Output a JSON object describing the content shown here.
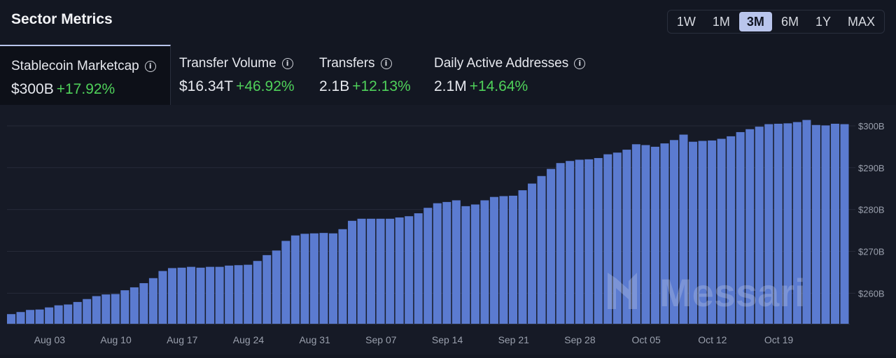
{
  "header": {
    "title": "Sector Metrics"
  },
  "ranges": [
    {
      "label": "1W",
      "active": false
    },
    {
      "label": "1M",
      "active": false
    },
    {
      "label": "3M",
      "active": true
    },
    {
      "label": "6M",
      "active": false
    },
    {
      "label": "1Y",
      "active": false
    },
    {
      "label": "MAX",
      "active": false
    }
  ],
  "metrics": [
    {
      "label": "Stablecoin Marketcap",
      "value": "$300B",
      "change": "+17.92%",
      "active": true
    },
    {
      "label": "Transfer Volume",
      "value": "$16.34T",
      "change": "+46.92%",
      "active": false
    },
    {
      "label": "Transfers",
      "value": "2.1B",
      "change": "+12.13%",
      "active": false
    },
    {
      "label": "Daily Active Addresses",
      "value": "2.1M",
      "change": "+14.64%",
      "active": false
    }
  ],
  "watermark": "Messari",
  "colors": {
    "bar": "#5b7bd0",
    "positive": "#4fd15a",
    "accent": "#b9c5ec"
  },
  "chart_data": {
    "type": "bar",
    "ylim": [
      252.7,
      302
    ],
    "yticks": [
      {
        "value": 300,
        "label": "$300B"
      },
      {
        "value": 290,
        "label": "$290B"
      },
      {
        "value": 280,
        "label": "$280B"
      },
      {
        "value": 270,
        "label": "$270B"
      },
      {
        "value": 260,
        "label": "$260B"
      }
    ],
    "xticks": [
      {
        "index": 4,
        "label": "Aug 03"
      },
      {
        "index": 11,
        "label": "Aug 10"
      },
      {
        "index": 18,
        "label": "Aug 17"
      },
      {
        "index": 25,
        "label": "Aug 24"
      },
      {
        "index": 32,
        "label": "Aug 31"
      },
      {
        "index": 39,
        "label": "Sep 07"
      },
      {
        "index": 46,
        "label": "Sep 14"
      },
      {
        "index": 53,
        "label": "Sep 21"
      },
      {
        "index": 60,
        "label": "Sep 28"
      },
      {
        "index": 67,
        "label": "Oct 05"
      },
      {
        "index": 74,
        "label": "Oct 12"
      },
      {
        "index": 81,
        "label": "Oct 19"
      }
    ],
    "series": [
      {
        "values": [
          255.0,
          255.5,
          256.0,
          256.1,
          256.6,
          257.1,
          257.3,
          257.9,
          258.6,
          259.3,
          259.7,
          259.8,
          260.7,
          261.4,
          262.4,
          263.6,
          265.3,
          266.0,
          266.1,
          266.3,
          266.1,
          266.3,
          266.3,
          266.6,
          266.7,
          266.8,
          267.7,
          269.1,
          270.2,
          272.5,
          273.8,
          274.2,
          274.3,
          274.4,
          274.3,
          275.3,
          277.3,
          277.8,
          277.8,
          277.8,
          277.8,
          278.1,
          278.4,
          279.1,
          280.4,
          281.5,
          281.8,
          282.2,
          280.8,
          281.2,
          282.2,
          283.0,
          283.2,
          283.3,
          284.6,
          286.2,
          288.0,
          289.7,
          291.1,
          291.6,
          291.9,
          292.0,
          292.3,
          293.2,
          293.6,
          294.3,
          295.6,
          295.4,
          295.0,
          295.8,
          296.6,
          297.9,
          296.2,
          296.4,
          296.5,
          296.9,
          297.5,
          298.5,
          299.2,
          299.8,
          300.4,
          300.5,
          300.6,
          300.9,
          301.4,
          300.2,
          300.1,
          300.5,
          300.4
        ]
      }
    ]
  }
}
